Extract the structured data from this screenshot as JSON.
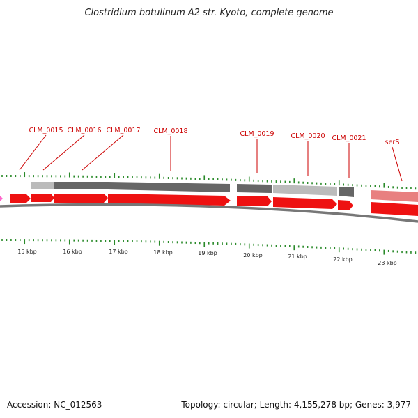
{
  "title": "Clostridium botulinum A2 str. Kyoto, complete genome",
  "footer": {
    "accession": "Accession: NC_012563",
    "summary": "Topology: circular; Length: 4,155,278 bp; Genes: 3,977"
  },
  "colors": {
    "cds": "#ee1111",
    "cds_track_dark": "#666666",
    "cds_track_light": "#bbbbbb",
    "rna": "#e88080",
    "tick": "#2a8a2a",
    "backbone": "#777777",
    "label": "#cc0000",
    "pink_marker": "#ff66cc"
  },
  "genes": [
    {
      "name": "CLM_0015"
    },
    {
      "name": "CLM_0016"
    },
    {
      "name": "CLM_0017"
    },
    {
      "name": "CLM_0018"
    },
    {
      "name": "CLM_0019"
    },
    {
      "name": "CLM_0020"
    },
    {
      "name": "CLM_0021"
    },
    {
      "name": "serS"
    }
  ],
  "kbp_labels": [
    "15 kbp",
    "16 kbp",
    "17 kbp",
    "18 kbp",
    "19 kbp",
    "20 kbp",
    "21 kbp",
    "22 kbp",
    "23 kbp"
  ]
}
